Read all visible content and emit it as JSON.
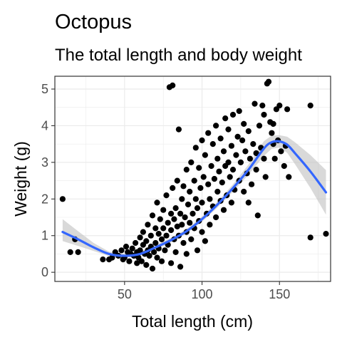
{
  "chart_data": {
    "type": "scatter",
    "title": "Octopus",
    "subtitle": "The total length and body weight",
    "xlabel": "Total length (cm)",
    "ylabel": "Weight (g)",
    "xlim": [
      5,
      183
    ],
    "ylim": [
      -0.25,
      5.35
    ],
    "x_ticks": [
      50,
      100,
      150
    ],
    "y_ticks": [
      0,
      1,
      2,
      3,
      4,
      5
    ],
    "grid": true,
    "legend": "none",
    "colors": {
      "points": "#000000",
      "smooth_line": "#3366ff",
      "confidence_band": "#bfbfbf",
      "panel_border": "#333333",
      "grid": "#ebebeb"
    },
    "series": [
      {
        "type": "scatter",
        "points": [
          [
            10,
            2.0
          ],
          [
            15,
            0.55
          ],
          [
            18,
            0.9
          ],
          [
            20,
            0.55
          ],
          [
            36,
            0.35
          ],
          [
            40,
            0.35
          ],
          [
            42,
            0.4
          ],
          [
            44,
            0.55
          ],
          [
            46,
            0.45
          ],
          [
            48,
            0.6
          ],
          [
            49,
            0.35
          ],
          [
            50,
            0.4
          ],
          [
            51,
            0.7
          ],
          [
            52,
            0.55
          ],
          [
            53,
            0.3
          ],
          [
            54,
            0.5
          ],
          [
            55,
            0.65
          ],
          [
            56,
            0.45
          ],
          [
            57,
            0.8
          ],
          [
            58,
            0.55
          ],
          [
            58,
            0.25
          ],
          [
            59,
            0.4
          ],
          [
            60,
            0.95
          ],
          [
            60,
            0.6
          ],
          [
            61,
            0.3
          ],
          [
            62,
            0.75
          ],
          [
            62,
            1.1
          ],
          [
            63,
            0.5
          ],
          [
            64,
            0.2
          ],
          [
            64,
            0.85
          ],
          [
            65,
            1.3
          ],
          [
            65,
            0.6
          ],
          [
            66,
            0.45
          ],
          [
            67,
            1.0
          ],
          [
            67,
            0.7
          ],
          [
            68,
            0.1
          ],
          [
            68,
            1.55
          ],
          [
            69,
            0.55
          ],
          [
            70,
            0.8
          ],
          [
            70,
            1.2
          ],
          [
            71,
            1.9
          ],
          [
            71,
            0.4
          ],
          [
            72,
            1.05
          ],
          [
            72,
            0.65
          ],
          [
            73,
            1.45
          ],
          [
            74,
            0.9
          ],
          [
            74,
            0.3
          ],
          [
            75,
            1.7
          ],
          [
            75,
            1.2
          ],
          [
            76,
            0.6
          ],
          [
            77,
            2.1
          ],
          [
            77,
            1.0
          ],
          [
            78,
            1.35
          ],
          [
            78,
            0.75
          ],
          [
            79,
            5.05
          ],
          [
            80,
            1.6
          ],
          [
            80,
            0.25
          ],
          [
            80,
            1.15
          ],
          [
            81,
            5.1
          ],
          [
            81,
            2.3
          ],
          [
            82,
            0.9
          ],
          [
            82,
            1.45
          ],
          [
            83,
            1.75
          ],
          [
            83,
            0.55
          ],
          [
            84,
            1.25
          ],
          [
            84,
            2.5
          ],
          [
            85,
            3.9
          ],
          [
            85,
            1.0
          ],
          [
            86,
            1.6
          ],
          [
            86,
            0.15
          ],
          [
            87,
            2.0
          ],
          [
            87,
            1.3
          ],
          [
            88,
            0.8
          ],
          [
            88,
            2.35
          ],
          [
            89,
            1.5
          ],
          [
            90,
            2.8
          ],
          [
            90,
            1.1
          ],
          [
            90,
            0.5
          ],
          [
            91,
            1.85
          ],
          [
            92,
            2.2
          ],
          [
            92,
            1.35
          ],
          [
            93,
            3.0
          ],
          [
            93,
            0.9
          ],
          [
            94,
            1.6
          ],
          [
            95,
            2.5
          ],
          [
            95,
            1.2
          ],
          [
            96,
            3.4
          ],
          [
            96,
            2.0
          ],
          [
            97,
            0.6
          ],
          [
            97,
            1.75
          ],
          [
            98,
            2.85
          ],
          [
            98,
            1.4
          ],
          [
            99,
            2.3
          ],
          [
            100,
            3.6
          ],
          [
            100,
            1.9
          ],
          [
            100,
            1.1
          ],
          [
            101,
            2.6
          ],
          [
            102,
            0.85
          ],
          [
            102,
            3.2
          ],
          [
            103,
            1.6
          ],
          [
            104,
            2.4
          ],
          [
            104,
            3.8
          ],
          [
            105,
            2.0
          ],
          [
            105,
            1.3
          ],
          [
            106,
            2.9
          ],
          [
            107,
            1.8
          ],
          [
            107,
            3.5
          ],
          [
            108,
            2.55
          ],
          [
            109,
            4.0
          ],
          [
            109,
            1.5
          ],
          [
            110,
            2.2
          ],
          [
            110,
            3.1
          ],
          [
            111,
            2.75
          ],
          [
            112,
            1.95
          ],
          [
            112,
            3.65
          ],
          [
            113,
            2.45
          ],
          [
            114,
            3.3
          ],
          [
            114,
            1.7
          ],
          [
            115,
            4.2
          ],
          [
            115,
            2.9
          ],
          [
            116,
            2.1
          ],
          [
            117,
            3.0
          ],
          [
            117,
            3.9
          ],
          [
            118,
            2.6
          ],
          [
            119,
            1.9
          ],
          [
            119,
            3.45
          ],
          [
            120,
            2.8
          ],
          [
            120,
            4.3
          ],
          [
            121,
            2.25
          ],
          [
            122,
            3.2
          ],
          [
            123,
            3.7
          ],
          [
            124,
            2.5
          ],
          [
            124,
            4.4
          ],
          [
            125,
            3.0
          ],
          [
            126,
            3.6
          ],
          [
            127,
            2.2
          ],
          [
            127,
            4.05
          ],
          [
            128,
            3.3
          ],
          [
            129,
            2.7
          ],
          [
            130,
            3.85
          ],
          [
            130,
            1.9
          ],
          [
            131,
            3.1
          ],
          [
            132,
            2.4
          ],
          [
            133,
            3.5
          ],
          [
            134,
            4.6
          ],
          [
            135,
            2.8
          ],
          [
            135,
            3.25
          ],
          [
            136,
            1.55
          ],
          [
            137,
            4.0
          ],
          [
            138,
            3.4
          ],
          [
            139,
            4.55
          ],
          [
            140,
            3.1
          ],
          [
            140,
            4.3
          ],
          [
            141,
            2.6
          ],
          [
            142,
            5.15
          ],
          [
            143,
            5.2
          ],
          [
            144,
            4.1
          ],
          [
            145,
            3.8
          ],
          [
            146,
            4.05
          ],
          [
            146,
            3.5
          ],
          [
            147,
            3.1
          ],
          [
            148,
            4.45
          ],
          [
            149,
            3.6
          ],
          [
            150,
            4.55
          ],
          [
            151,
            3.3
          ],
          [
            153,
            2.9
          ],
          [
            154,
            3.45
          ],
          [
            155,
            4.45
          ],
          [
            156,
            2.6
          ],
          [
            170,
            4.55
          ],
          [
            170,
            0.95
          ],
          [
            180,
            1.05
          ]
        ]
      },
      {
        "type": "line",
        "name": "",
        "smooth": {
          "x": [
            10,
            20,
            30,
            40,
            50,
            60,
            70,
            80,
            90,
            100,
            110,
            120,
            130,
            140,
            145,
            150,
            155,
            160,
            170,
            180
          ],
          "y": [
            1.1,
            0.9,
            0.68,
            0.5,
            0.45,
            0.5,
            0.68,
            0.88,
            1.12,
            1.45,
            1.85,
            2.3,
            2.8,
            3.38,
            3.55,
            3.57,
            3.48,
            3.25,
            2.75,
            2.18
          ],
          "lower": [
            0.85,
            0.72,
            0.58,
            0.44,
            0.4,
            0.45,
            0.62,
            0.82,
            1.06,
            1.38,
            1.77,
            2.2,
            2.66,
            3.18,
            3.37,
            3.4,
            3.26,
            2.95,
            2.3,
            1.57
          ],
          "upper": [
            1.45,
            1.12,
            0.8,
            0.56,
            0.5,
            0.55,
            0.74,
            0.94,
            1.18,
            1.52,
            1.93,
            2.4,
            2.94,
            3.58,
            3.73,
            3.74,
            3.7,
            3.55,
            3.2,
            2.79
          ]
        }
      }
    ]
  }
}
